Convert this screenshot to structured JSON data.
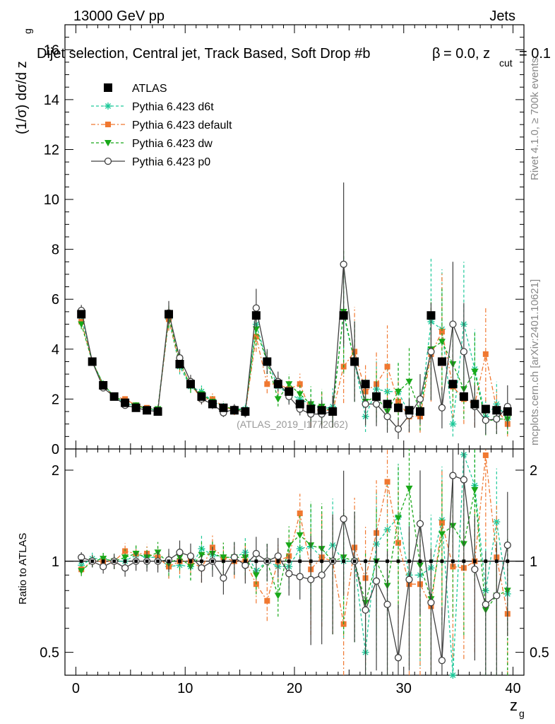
{
  "header": {
    "energy_label": "13000 GeV pp",
    "process_label": "Jets",
    "title": "Dijet selection, Central jet, Track Based, Soft Drop #b",
    "title_beta": "= 0.0, z",
    "title_zcut_sub": "cut",
    "title_zcut_value": "= 0.1",
    "beta_symbol": "β",
    "rivet_label": "Rivet 4.1.0, ≥ 700k events",
    "mcplots_label": "mcplots.cern.ch [arXiv:2401.10621]",
    "analysis_id": "(ATLAS_2019_I1772062)"
  },
  "axes": {
    "main_ylabel_prefix": "(1/σ) dσ/d z",
    "main_ylabel_sub": "g",
    "ratio_ylabel": "Ratio to ATLAS",
    "xlabel": "z",
    "xlabel_sub": "g"
  },
  "colors": {
    "ATLAS": "#000000",
    "d6t": "#1fc99a",
    "default": "#f07830",
    "dw": "#18a818",
    "p0": "#404040"
  },
  "chart_data": {
    "type": "scatter",
    "x": [
      0.5,
      1.5,
      2.5,
      3.5,
      4.5,
      5.5,
      6.5,
      7.5,
      8.5,
      9.5,
      10.5,
      11.5,
      12.5,
      13.5,
      14.5,
      15.5,
      16.5,
      17.5,
      18.5,
      19.5,
      20.5,
      21.5,
      22.5,
      23.5,
      24.5,
      25.5,
      26.5,
      27.5,
      28.5,
      29.5,
      30.5,
      31.5,
      32.5,
      33.5,
      34.5,
      35.5,
      36.5,
      37.5,
      38.5,
      39.5
    ],
    "xlim": [
      -1,
      41
    ],
    "xticks": [
      0,
      10,
      20,
      30,
      40
    ],
    "main": {
      "ylim": [
        0,
        17
      ],
      "yticks": [
        0,
        2,
        4,
        6,
        8,
        10,
        12,
        14,
        16
      ],
      "series": [
        {
          "key": "ATLAS",
          "name": "ATLAS",
          "marker": "square",
          "style": "none",
          "values": [
            5.4,
            3.5,
            2.55,
            2.1,
            1.85,
            1.65,
            1.55,
            1.5,
            5.4,
            3.4,
            2.6,
            2.1,
            1.8,
            1.65,
            1.55,
            1.5,
            5.35,
            3.5,
            2.6,
            2.3,
            1.8,
            1.6,
            1.55,
            1.5,
            5.35,
            3.5,
            2.6,
            2.1,
            1.8,
            1.65,
            1.55,
            1.5,
            5.35,
            3.5,
            2.6,
            2.1,
            1.8,
            1.6,
            1.55,
            1.5
          ]
        },
        {
          "key": "d6t",
          "name": "Pythia 6.423 d6t",
          "marker": "star",
          "style": "dashed",
          "values": [
            5.3,
            3.5,
            2.6,
            2.1,
            1.85,
            1.7,
            1.6,
            1.55,
            5.2,
            3.3,
            2.5,
            2.3,
            1.9,
            1.7,
            1.6,
            1.6,
            5.0,
            3.5,
            2.5,
            2.2,
            2.0,
            1.8,
            1.6,
            1.7,
            5.4,
            3.5,
            1.3,
            2.4,
            2.3,
            2.3,
            1.4,
            1.4,
            5.1,
            4.8,
            1.0,
            5.0,
            3.2,
            1.3,
            1.8,
            1.2
          ]
        },
        {
          "key": "default",
          "name": "Pythia 6.423 default",
          "marker": "square-small",
          "style": "dashdot",
          "values": [
            5.1,
            3.5,
            2.55,
            2.1,
            2.0,
            1.75,
            1.65,
            1.55,
            5.2,
            3.4,
            2.6,
            2.0,
            2.0,
            1.7,
            1.55,
            1.5,
            4.5,
            2.6,
            2.6,
            2.4,
            2.6,
            1.5,
            1.6,
            1.5,
            3.3,
            3.9,
            2.3,
            2.6,
            3.3,
            1.9,
            1.3,
            1.3,
            3.8,
            4.7,
            2.5,
            2.0,
            1.8,
            3.8,
            1.6,
            1.0
          ]
        },
        {
          "key": "dw",
          "name": "Pythia 6.423 dw",
          "marker": "triangle-down",
          "style": "dashed",
          "values": [
            5.0,
            3.5,
            2.6,
            2.1,
            1.9,
            1.75,
            1.6,
            1.6,
            5.3,
            3.5,
            2.5,
            2.2,
            1.9,
            1.7,
            1.6,
            1.55,
            4.8,
            3.5,
            2.0,
            2.6,
            2.2,
            1.8,
            1.7,
            1.5,
            5.5,
            3.5,
            1.9,
            2.1,
            1.5,
            2.3,
            2.7,
            1.5,
            4.0,
            4.3,
            3.4,
            2.4,
            3.1,
            1.1,
            1.2,
            1.2
          ]
        },
        {
          "key": "p0",
          "name": "Pythia 6.423 p0",
          "marker": "circle-open",
          "style": "solid",
          "values": [
            5.55,
            3.5,
            2.45,
            2.1,
            1.75,
            1.65,
            1.55,
            1.5,
            5.45,
            3.65,
            2.7,
            2.0,
            1.8,
            1.45,
            1.6,
            1.45,
            5.65,
            3.5,
            2.7,
            2.1,
            1.6,
            1.4,
            1.4,
            1.5,
            7.4,
            3.5,
            1.8,
            1.8,
            1.3,
            0.8,
            1.35,
            2.0,
            3.9,
            1.65,
            5.0,
            3.9,
            1.7,
            1.15,
            1.2,
            1.7
          ]
        }
      ]
    },
    "ratio": {
      "ylim": [
        0.42,
        2.35
      ],
      "scale": "log",
      "yticks": [
        0.5,
        1,
        2
      ],
      "series": [
        {
          "key": "d6t",
          "values": [
            0.97,
            1.02,
            1.02,
            1.0,
            1.0,
            1.05,
            1.03,
            1.03,
            0.96,
            0.97,
            0.96,
            1.1,
            1.05,
            1.03,
            1.03,
            1.07,
            0.93,
            1.0,
            0.96,
            0.96,
            1.1,
            1.12,
            1.03,
            1.13,
            1.0,
            1.0,
            0.5,
            1.14,
            1.27,
            1.4,
            0.9,
            0.9,
            0.95,
            1.37,
            0.38,
            2.25,
            1.78,
            0.8,
            1.35,
            0.78
          ]
        },
        {
          "key": "default",
          "values": [
            0.94,
            1.0,
            1.0,
            1.0,
            1.08,
            1.06,
            1.06,
            1.03,
            0.96,
            1.0,
            1.0,
            0.95,
            1.11,
            1.03,
            1.0,
            1.0,
            0.84,
            0.74,
            1.0,
            1.04,
            1.44,
            0.94,
            1.03,
            1.0,
            0.62,
            1.11,
            0.88,
            1.24,
            1.83,
            1.15,
            0.84,
            0.84,
            0.71,
            1.34,
            0.96,
            0.95,
            1.0,
            2.24,
            1.03,
            0.67
          ]
        },
        {
          "key": "dw",
          "values": [
            0.93,
            1.0,
            1.02,
            1.0,
            1.03,
            1.06,
            1.03,
            1.07,
            0.98,
            1.03,
            0.96,
            1.05,
            1.06,
            1.03,
            1.03,
            1.03,
            0.9,
            1.0,
            0.77,
            1.13,
            1.22,
            1.13,
            1.1,
            1.0,
            1.03,
            1.0,
            0.73,
            1.0,
            0.83,
            1.39,
            1.74,
            0.97,
            0.75,
            1.23,
            1.31,
            1.14,
            1.72,
            0.69,
            0.77,
            0.8
          ]
        },
        {
          "key": "p0",
          "values": [
            1.03,
            1.0,
            0.96,
            1.0,
            0.95,
            1.0,
            1.0,
            1.0,
            1.01,
            1.07,
            1.04,
            0.95,
            1.0,
            0.88,
            1.03,
            0.97,
            1.06,
            1.0,
            1.04,
            0.91,
            0.89,
            0.87,
            0.9,
            1.0,
            1.38,
            1.0,
            0.69,
            0.86,
            0.72,
            0.48,
            0.87,
            1.33,
            0.73,
            0.47,
            1.92,
            1.86,
            0.94,
            0.72,
            0.77,
            1.13
          ]
        }
      ]
    }
  }
}
